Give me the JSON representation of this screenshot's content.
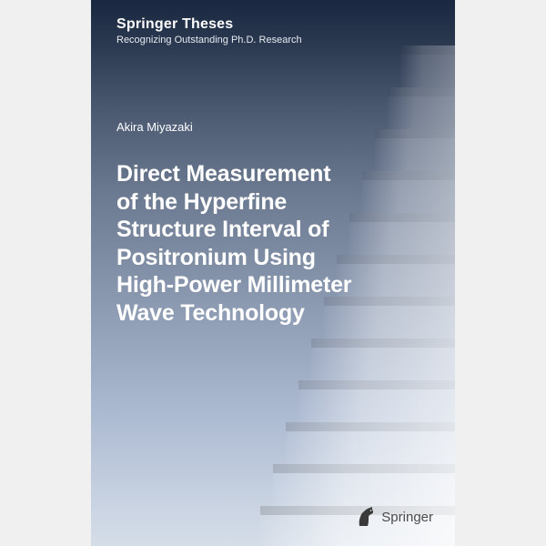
{
  "series": {
    "title": "Springer Theses",
    "subtitle": "Recognizing Outstanding Ph.D. Research"
  },
  "author": "Akira Miyazaki",
  "title": "Direct Measurement of the Hyperfine Structure Interval of Positronium Using High-Power Millimeter Wave Technology",
  "publisher": "Springer",
  "colors": {
    "gradient_top": "#1a2740",
    "gradient_bottom": "#d5dde8",
    "text_light": "#ffffff",
    "publisher_text": "#4a4a4a",
    "springer_horse": "#3a3a3a"
  },
  "stairs": {
    "count": 12,
    "base_top": 50,
    "step_height": 46,
    "base_width": 60,
    "width_step": 14,
    "tread": 36,
    "riser": 10
  }
}
